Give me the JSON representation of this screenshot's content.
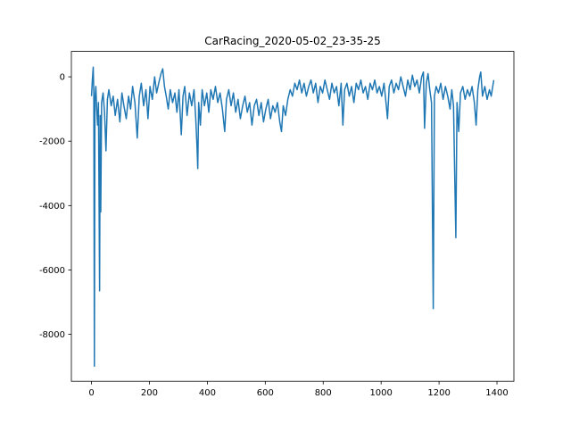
{
  "chart_data": {
    "type": "line",
    "title": "CarRacing_2020-05-02_23-35-25",
    "x": [
      0,
      3,
      6,
      8,
      10,
      12,
      15,
      18,
      21,
      24,
      28,
      30,
      32,
      35,
      40,
      45,
      50,
      55,
      60,
      68,
      75,
      82,
      90,
      98,
      105,
      112,
      120,
      128,
      135,
      142,
      150,
      158,
      165,
      172,
      180,
      188,
      195,
      202,
      210,
      218,
      225,
      232,
      240,
      246,
      252,
      258,
      265,
      272,
      280,
      288,
      295,
      302,
      310,
      316,
      322,
      330,
      338,
      346,
      354,
      360,
      364,
      367,
      370,
      376,
      382,
      390,
      398,
      405,
      412,
      420,
      428,
      436,
      444,
      452,
      460,
      466,
      474,
      482,
      490,
      498,
      506,
      514,
      522,
      530,
      538,
      546,
      554,
      562,
      570,
      578,
      586,
      594,
      602,
      610,
      618,
      626,
      634,
      642,
      650,
      656,
      662,
      670,
      678,
      686,
      694,
      702,
      710,
      718,
      726,
      734,
      742,
      750,
      758,
      766,
      774,
      782,
      790,
      798,
      806,
      814,
      822,
      830,
      838,
      846,
      854,
      862,
      868,
      874,
      882,
      890,
      898,
      906,
      914,
      922,
      930,
      938,
      946,
      954,
      962,
      970,
      978,
      986,
      994,
      1002,
      1010,
      1018,
      1022,
      1028,
      1036,
      1044,
      1052,
      1060,
      1068,
      1076,
      1084,
      1092,
      1100,
      1108,
      1116,
      1124,
      1132,
      1140,
      1146,
      1150,
      1156,
      1162,
      1168,
      1174,
      1180,
      1184,
      1190,
      1198,
      1206,
      1214,
      1222,
      1230,
      1238,
      1244,
      1250,
      1254,
      1258,
      1262,
      1268,
      1274,
      1282,
      1290,
      1298,
      1306,
      1314,
      1322,
      1328,
      1334,
      1340,
      1344,
      1350,
      1358,
      1366,
      1374,
      1380,
      1389
    ],
    "series": [
      {
        "color": "#1f77b4",
        "values": [
          -600,
          -100,
          300,
          -500,
          -8990,
          -700,
          -300,
          -1000,
          -1500,
          -800,
          -6650,
          -1200,
          -4200,
          -800,
          -500,
          -1100,
          -2300,
          -700,
          -400,
          -900,
          -600,
          -1200,
          -700,
          -1400,
          -500,
          -900,
          -1300,
          -600,
          -1000,
          -300,
          -800,
          -1900,
          -600,
          -200,
          -900,
          -400,
          -1300,
          -300,
          -700,
          0,
          -500,
          -200,
          100,
          250,
          -300,
          -600,
          -1000,
          -400,
          -800,
          -500,
          -1100,
          -400,
          -1800,
          -600,
          -300,
          -1200,
          -500,
          -900,
          -400,
          -1300,
          -2100,
          -2850,
          -800,
          -1500,
          -400,
          -900,
          -500,
          -1100,
          -400,
          -700,
          -300,
          -800,
          -500,
          -1000,
          -1700,
          -700,
          -400,
          -900,
          -500,
          -1100,
          -700,
          -1300,
          -900,
          -600,
          -1100,
          -800,
          -1500,
          -900,
          -700,
          -1200,
          -800,
          -1400,
          -1000,
          -700,
          -1300,
          -900,
          -1100,
          -800,
          -1400,
          -1700,
          -900,
          -1200,
          -700,
          -400,
          -600,
          -200,
          -400,
          -100,
          -500,
          -200,
          -600,
          -300,
          -100,
          -500,
          -200,
          -800,
          -300,
          -500,
          -100,
          -400,
          -700,
          -200,
          -500,
          -300,
          -900,
          -200,
          -1500,
          -400,
          -200,
          -600,
          -300,
          -800,
          -200,
          -400,
          -100,
          -500,
          -300,
          -700,
          -200,
          -400,
          -100,
          -500,
          -300,
          -600,
          -200,
          -900,
          -1300,
          -300,
          -100,
          -500,
          -200,
          -400,
          0,
          -300,
          -600,
          -100,
          -400,
          50,
          -300,
          -100,
          -500,
          0,
          150,
          -1600,
          -200,
          100,
          -400,
          -800,
          -7200,
          -600,
          -300,
          -500,
          -200,
          -700,
          -300,
          -600,
          -1000,
          -400,
          -900,
          -3000,
          -5000,
          -800,
          -1700,
          -500,
          -300,
          -700,
          -400,
          -600,
          -300,
          -800,
          -1500,
          -400,
          0,
          150,
          -600,
          -300,
          -700,
          -400,
          -600,
          -100
        ]
      }
    ],
    "xlim": [
      -69.45,
      1458.45
    ],
    "ylim": [
      -9460,
      790
    ],
    "xticks": [
      0,
      200,
      400,
      600,
      800,
      1000,
      1200,
      1400
    ],
    "yticks": [
      -8000,
      -6000,
      -4000,
      -2000,
      0
    ]
  }
}
